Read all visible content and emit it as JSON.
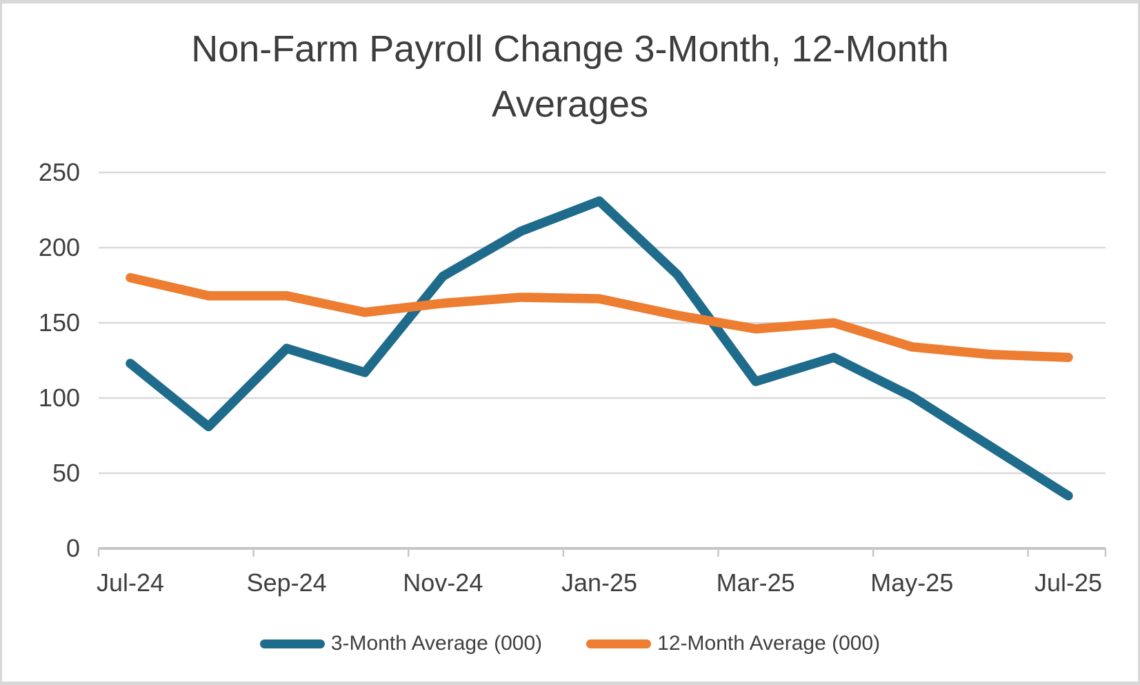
{
  "page": {
    "background": "#ffffff",
    "frame_color": "#d8d8d8"
  },
  "chart_data": {
    "type": "line",
    "title": "Non-Farm Payroll Change 3-Month, 12-Month Averages",
    "categories": [
      "Jul-24",
      "Aug-24",
      "Sep-24",
      "Oct-24",
      "Nov-24",
      "Dec-24",
      "Jan-25",
      "Feb-25",
      "Mar-25",
      "Apr-25",
      "May-25",
      "Jun-25",
      "Jul-25"
    ],
    "x_tick_labels": [
      "Jul-24",
      "Sep-24",
      "Nov-24",
      "Jan-25",
      "Mar-25",
      "May-25",
      "Jul-25"
    ],
    "x_tick_label_every": 2,
    "series": [
      {
        "name": "3-Month Average (000)",
        "color": "#1f6b8c",
        "values": [
          123,
          81,
          133,
          117,
          181,
          211,
          231,
          182,
          111,
          127,
          101,
          68,
          35
        ]
      },
      {
        "name": "12-Month Average (000)",
        "color": "#ed7d31",
        "values": [
          180,
          168,
          168,
          157,
          163,
          167,
          166,
          155,
          146,
          150,
          134,
          129,
          127
        ]
      }
    ],
    "ylim": [
      0,
      250
    ],
    "y_ticks": [
      0,
      50,
      100,
      150,
      200,
      250
    ],
    "grid": "horizontal",
    "legend_position": "bottom",
    "text_color": "#3f3f3f",
    "gridline_color": "#d9d9d9",
    "axis_color": "#c6c6c6",
    "line_width": 13.5
  }
}
